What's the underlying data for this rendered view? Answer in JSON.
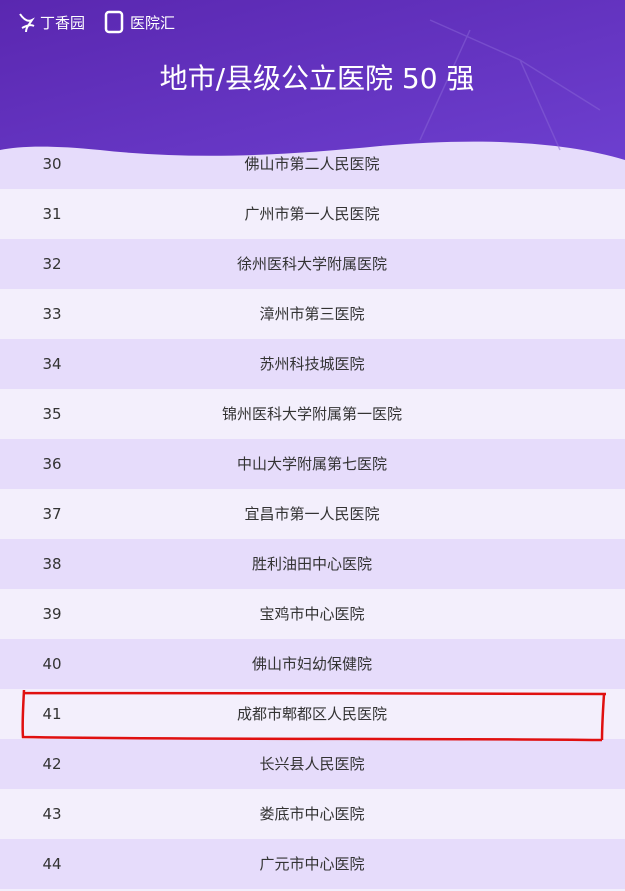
{
  "header": {
    "logos": [
      "丁香园",
      "医院汇"
    ],
    "title": "地市/县级公立医院 50 强"
  },
  "table": {
    "rows": [
      [
        30,
        "佛山市第二人民医院"
      ],
      [
        31,
        "广州市第一人民医院"
      ],
      [
        32,
        "徐州医科大学附属医院"
      ],
      [
        33,
        "漳州市第三医院"
      ],
      [
        34,
        "苏州科技城医院"
      ],
      [
        35,
        "锦州医科大学附属第一医院"
      ],
      [
        36,
        "中山大学附属第七医院"
      ],
      [
        37,
        "宜昌市第一人民医院"
      ],
      [
        38,
        "胜利油田中心医院"
      ],
      [
        39,
        "宝鸡市中心医院"
      ],
      [
        40,
        "佛山市妇幼保健院"
      ],
      [
        41,
        "成都市郫都区人民医院"
      ],
      [
        42,
        "长兴县人民医院"
      ],
      [
        43,
        "娄底市中心医院"
      ],
      [
        44,
        "广元市中心医院"
      ]
    ]
  }
}
